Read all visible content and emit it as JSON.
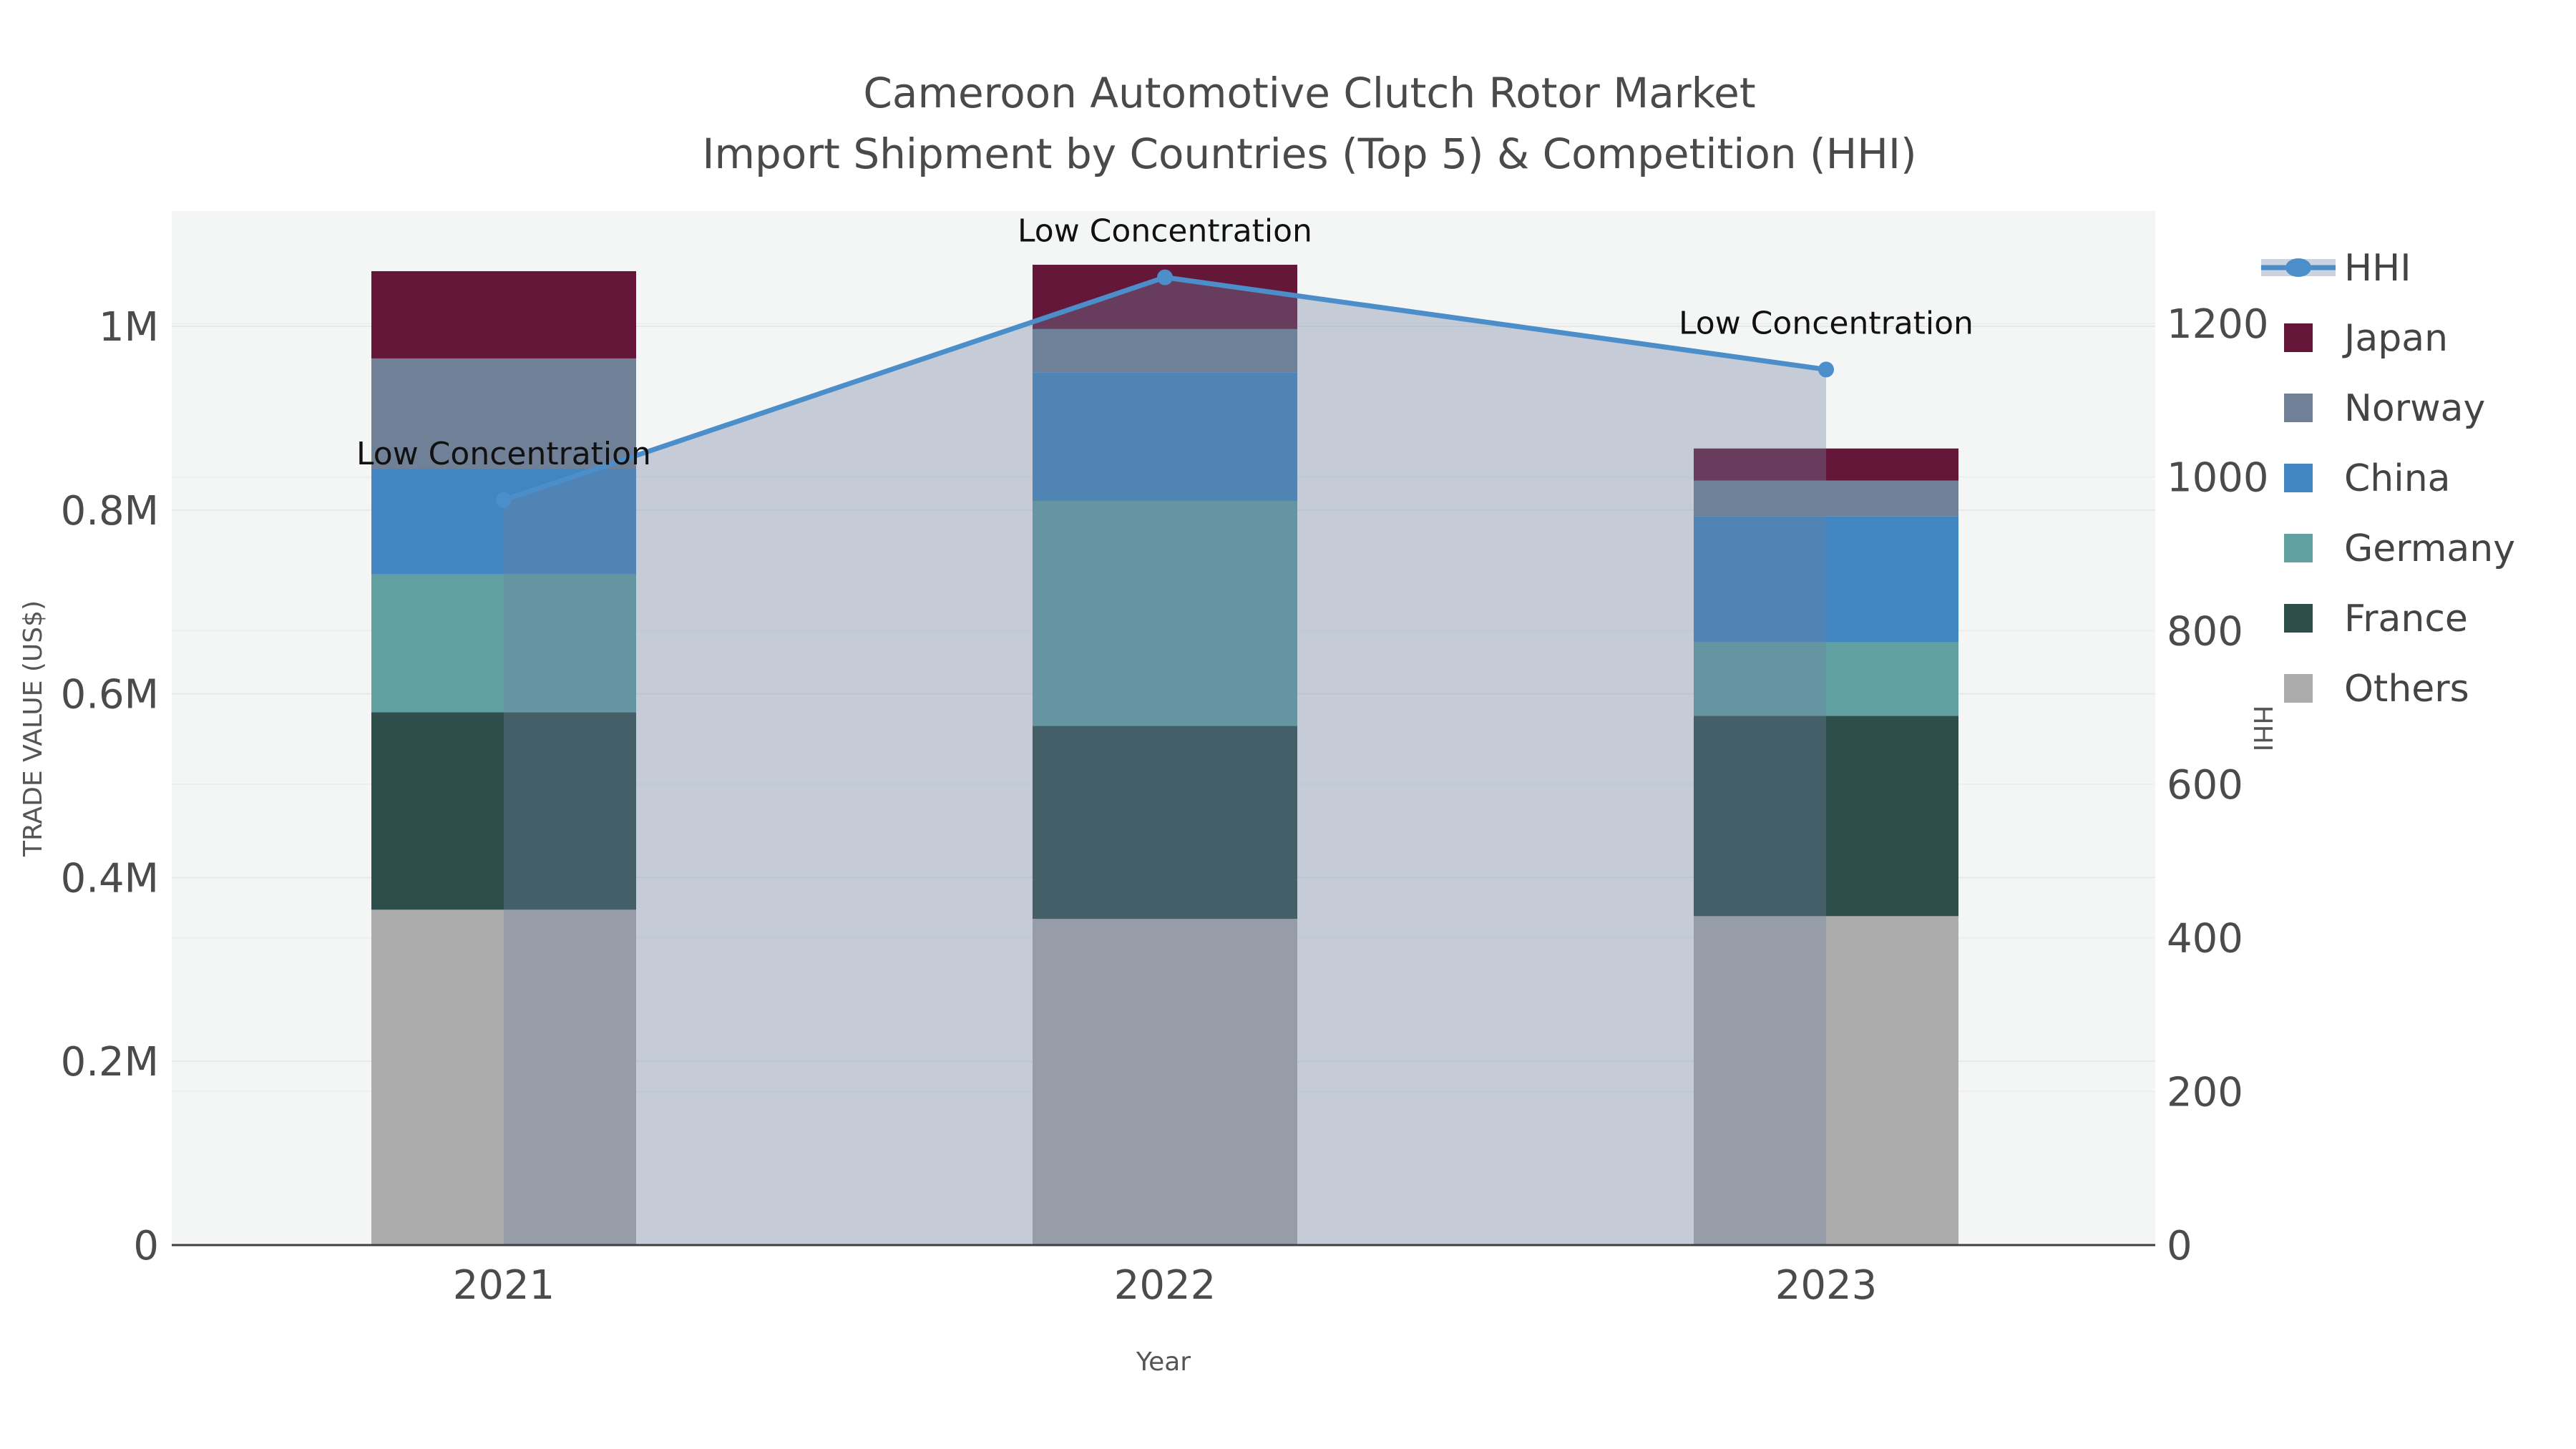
{
  "title": {
    "line1": "Cameroon Automotive Clutch Rotor Market",
    "line2": "Import Shipment by Countries (Top 5) & Competition (HHI)"
  },
  "chart_data": {
    "type": "combo-stacked-bar-line",
    "categories": [
      "2021",
      "2022",
      "2023"
    ],
    "bar_series": [
      {
        "name": "Others",
        "color": "#ACACAC",
        "values": [
          365000,
          355000,
          358000
        ]
      },
      {
        "name": "France",
        "color": "#2E4E4B",
        "values": [
          215000,
          210000,
          218000
        ]
      },
      {
        "name": "Germany",
        "color": "#61A0A0",
        "values": [
          150000,
          245000,
          80000
        ]
      },
      {
        "name": "China",
        "color": "#4186C1",
        "values": [
          115000,
          140000,
          137000
        ]
      },
      {
        "name": "Norway",
        "color": "#708096",
        "values": [
          120000,
          47000,
          39000
        ]
      },
      {
        "name": "Japan",
        "color": "#65173A",
        "values": [
          95000,
          70000,
          35000
        ]
      }
    ],
    "line_series": {
      "name": "HHI",
      "color": "#4C8EC9",
      "area_fill": "rgba(110,128,160,0.35)",
      "values": [
        970,
        1260,
        1140
      ]
    },
    "annotations": [
      "Low Concentration",
      "Low Concentration",
      "Low Concentration"
    ],
    "left_axis": {
      "title": "TRADE VALUE (US$)",
      "tick_labels": [
        "0",
        "0.2M",
        "0.4M",
        "0.6M",
        "0.8M",
        "1M"
      ],
      "tick_values": [
        0,
        200000,
        400000,
        600000,
        800000,
        1000000
      ],
      "max": 1120000
    },
    "right_axis": {
      "title": "HHI",
      "tick_labels": [
        "0",
        "200",
        "400",
        "600",
        "800",
        "1000",
        "1200"
      ],
      "tick_values": [
        0,
        200,
        400,
        600,
        800,
        1000,
        1200
      ],
      "max": 1340
    },
    "x_axis": {
      "title": "Year"
    },
    "legend": {
      "order": [
        "HHI",
        "Japan",
        "Norway",
        "China",
        "Germany",
        "France",
        "Others"
      ],
      "hhi_swatch_band_color": "#CBD3DF"
    },
    "layout_hints": {
      "plot_background": "#F4F5F5",
      "gridline_color": "#E7E9E9",
      "axis_line_color": "#3f3f3f",
      "grid_on": true,
      "legend_position": "right"
    }
  }
}
